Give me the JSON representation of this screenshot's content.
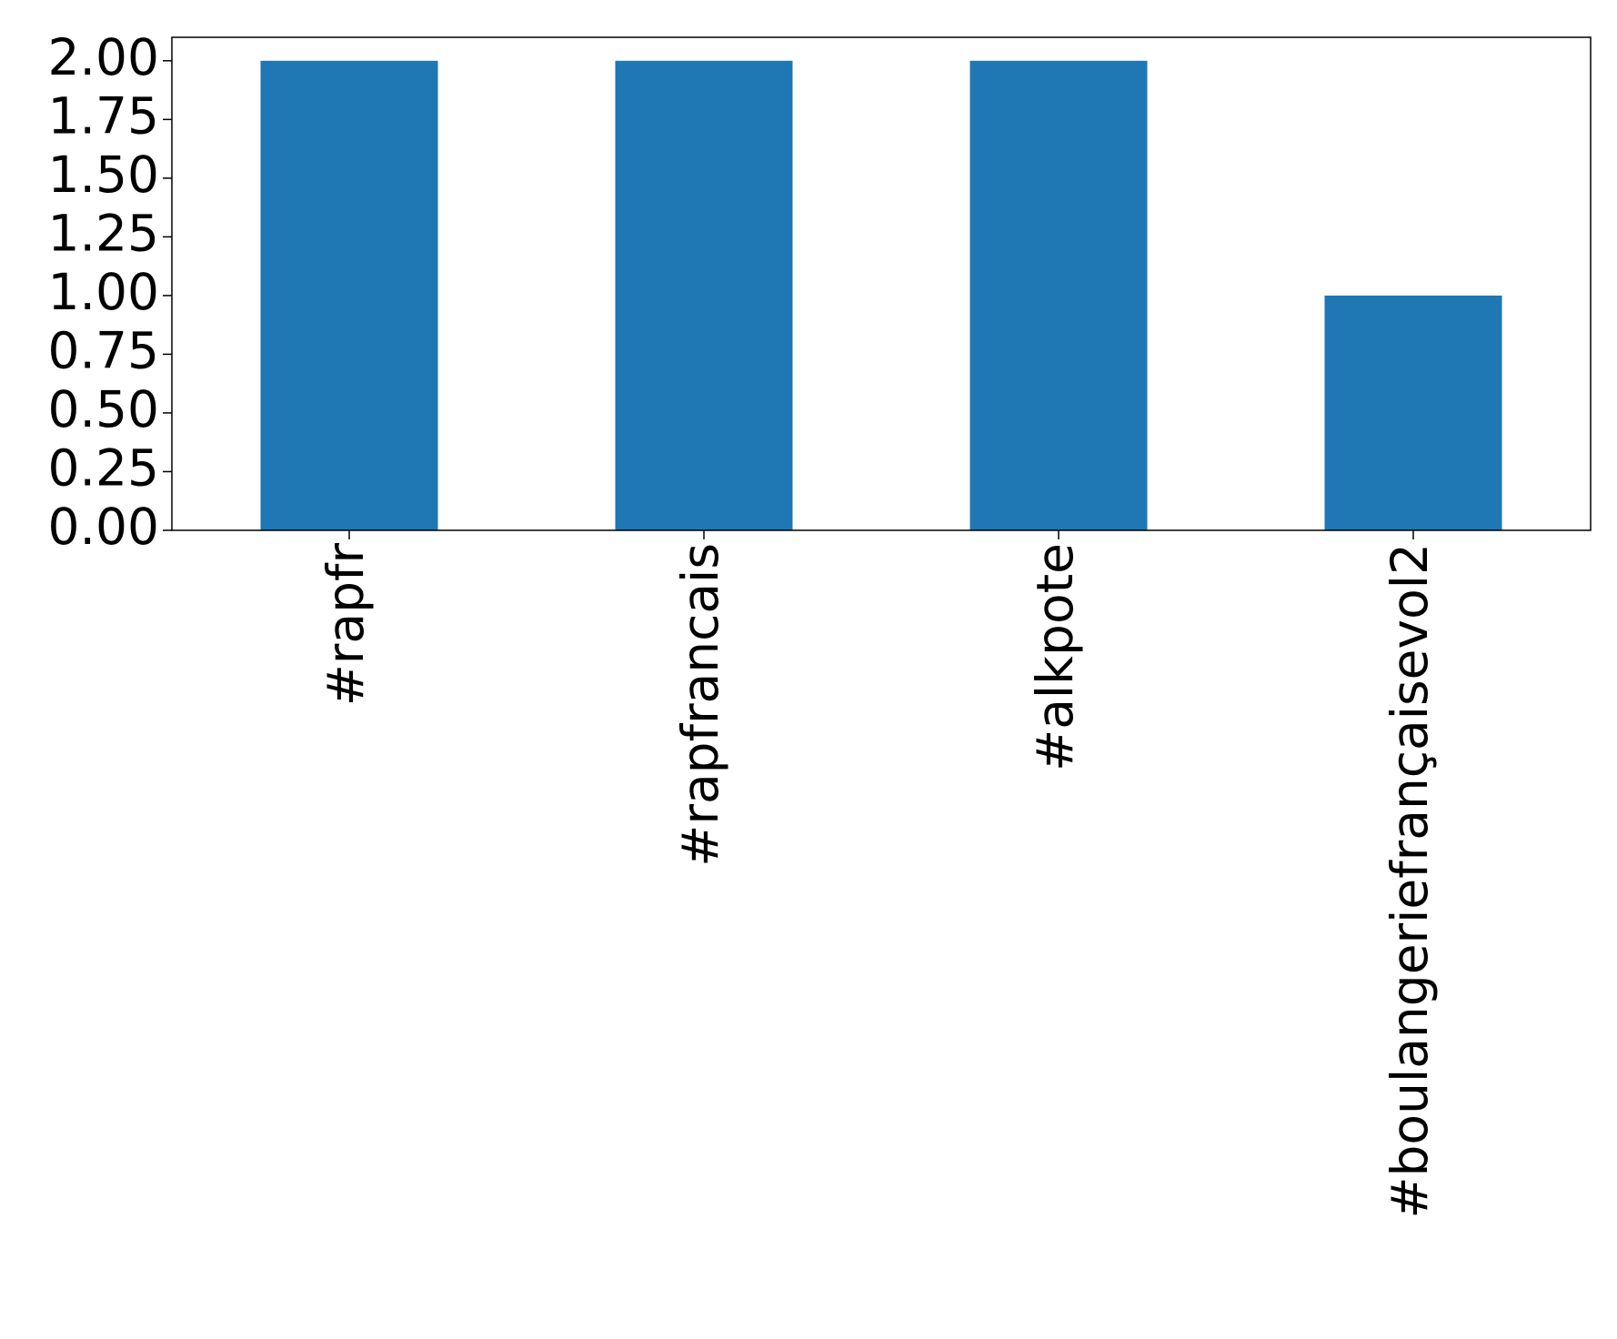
{
  "chart_data": {
    "type": "bar",
    "categories": [
      "#rapfr",
      "#rapfrancais",
      "#alkpote",
      "#boulangeriefrançaisevol2"
    ],
    "values": [
      2,
      2,
      2,
      1
    ],
    "color": "#1f77b4",
    "ylim": [
      0,
      2.1
    ],
    "yticks": [
      {
        "value": 0,
        "label": "0.00"
      },
      {
        "value": 0.25,
        "label": "0.25"
      },
      {
        "value": 0.5,
        "label": "0.50"
      },
      {
        "value": 0.75,
        "label": "0.75"
      },
      {
        "value": 1,
        "label": "1.00"
      },
      {
        "value": 1.25,
        "label": "1.25"
      },
      {
        "value": 1.5,
        "label": "1.50"
      },
      {
        "value": 1.75,
        "label": "1.75"
      },
      {
        "value": 2,
        "label": "2.00"
      }
    ],
    "grid": false
  }
}
